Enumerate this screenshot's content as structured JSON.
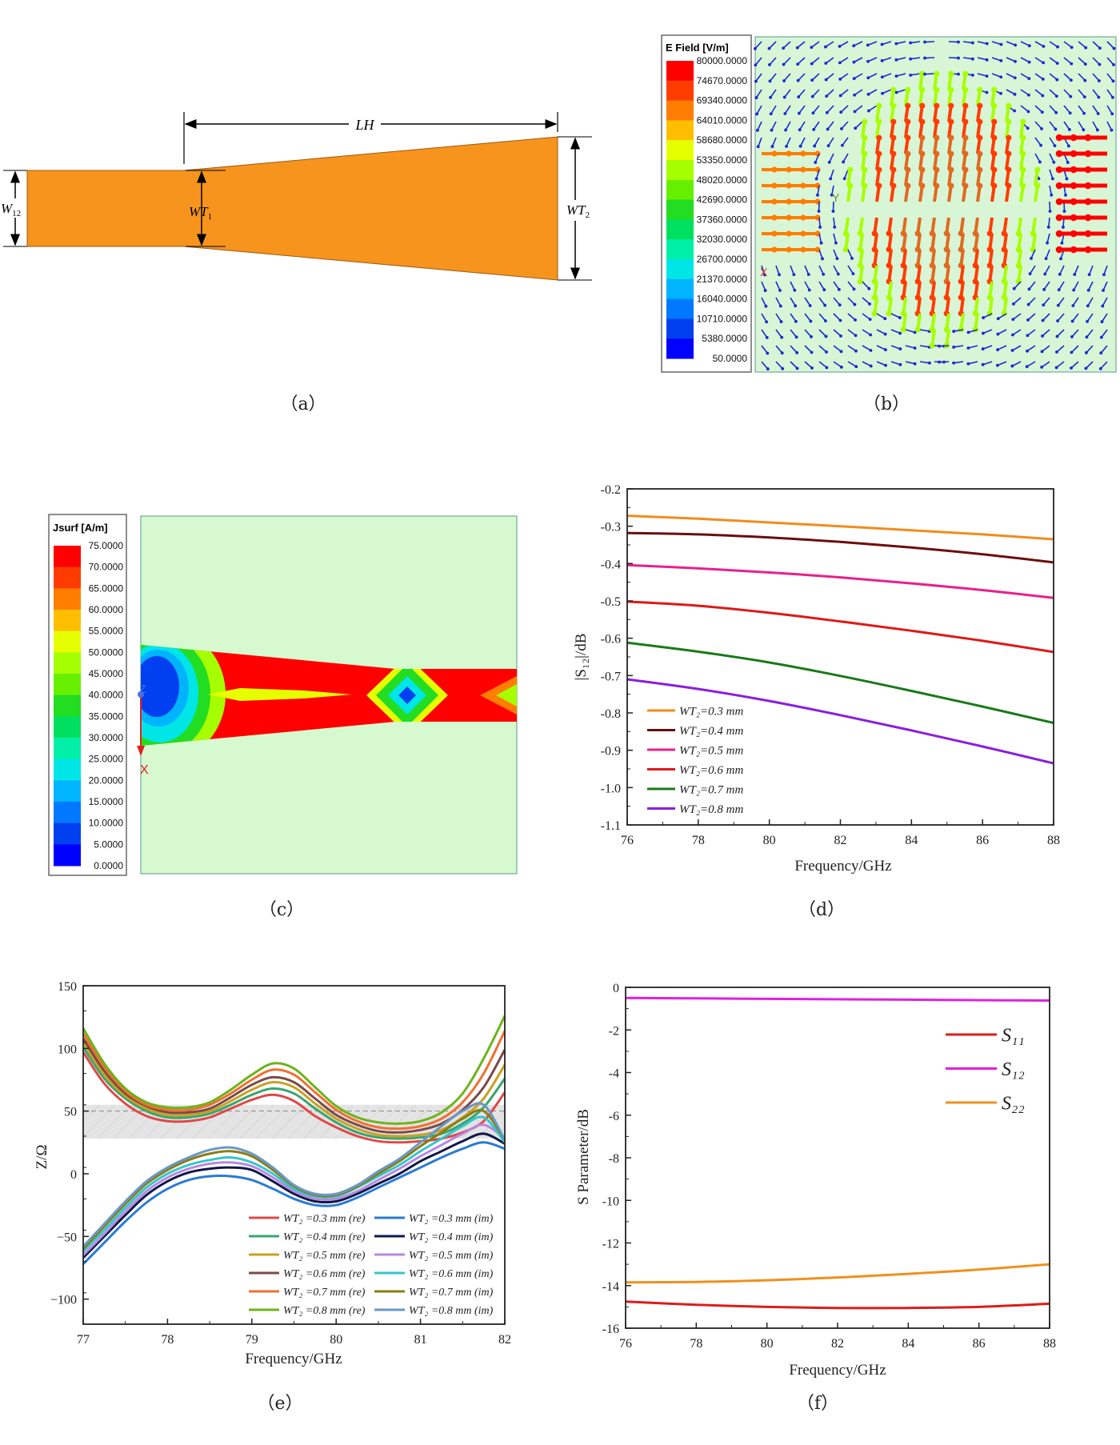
{
  "panel_a": {
    "caption": "（a）",
    "label_LH": "LH",
    "label_W12": "W",
    "label_W12_sub": "12",
    "label_WT1": "WT",
    "label_WT1_sub": "1",
    "label_WT2": "WT",
    "label_WT2_sub": "2",
    "fill_color": "#f7941d"
  },
  "panel_b": {
    "caption": "（b）",
    "colorbar_title": "E Field [V/m]",
    "colorbar_ticks": [
      "80000.0000",
      "74670.0000",
      "69340.0000",
      "64010.0000",
      "58680.0000",
      "53350.0000",
      "48020.0000",
      "42690.0000",
      "37360.0000",
      "32030.0000",
      "26700.0000",
      "21370.0000",
      "16040.0000",
      "10710.0000",
      "5380.0000",
      "50.0000"
    ],
    "axis_y": "Y",
    "axis_x": "X"
  },
  "panel_c": {
    "caption": "（c）",
    "colorbar_title": "Jsurf [A/m]",
    "colorbar_ticks": [
      "75.0000",
      "70.0000",
      "65.0000",
      "60.0000",
      "55.0000",
      "50.0000",
      "45.0000",
      "40.0000",
      "35.0000",
      "30.0000",
      "25.0000",
      "20.0000",
      "15.0000",
      "10.0000",
      "5.0000",
      "0.0000"
    ],
    "axis_z": "Z",
    "axis_x": "X"
  },
  "colormap": [
    "#ff0000",
    "#ff3c00",
    "#ff7d00",
    "#ffbe00",
    "#e6ff00",
    "#a6ff00",
    "#66f000",
    "#22dd22",
    "#00e060",
    "#00f0a8",
    "#00e6e6",
    "#00b4ff",
    "#0078ff",
    "#0040f0",
    "#0000ff"
  ],
  "chart_data": [
    {
      "id": "d",
      "caption": "（d）",
      "type": "line",
      "xlabel": "Frequency/GHz",
      "ylabel": "|S₁₂|/dB",
      "xlim": [
        76,
        88
      ],
      "ylim": [
        -1.1,
        -0.2
      ],
      "xticks": [
        "76",
        "78",
        "80",
        "82",
        "84",
        "86",
        "88"
      ],
      "yticks": [
        "-0.2",
        "-0.3",
        "-0.4",
        "-0.5",
        "-0.6",
        "-0.7",
        "-0.8",
        "-0.9",
        "-1.0",
        "-1.1"
      ],
      "grid": false,
      "legend": "bottom-left",
      "x": [
        76,
        78,
        80,
        82,
        84,
        86,
        88
      ],
      "series": [
        {
          "name": "WT₂=0.3 mm",
          "color": "#f28c1c",
          "values": [
            -0.272,
            -0.28,
            -0.29,
            -0.3,
            -0.311,
            -0.322,
            -0.335
          ]
        },
        {
          "name": "WT₂=0.4 mm",
          "color": "#6b0e0e",
          "values": [
            -0.318,
            -0.322,
            -0.33,
            -0.342,
            -0.357,
            -0.375,
            -0.397
          ]
        },
        {
          "name": "WT₂=0.5 mm",
          "color": "#e8208c",
          "values": [
            -0.404,
            -0.413,
            -0.424,
            -0.437,
            -0.453,
            -0.471,
            -0.492
          ]
        },
        {
          "name": "WT₂=0.6 mm",
          "color": "#e01818",
          "values": [
            -0.502,
            -0.513,
            -0.532,
            -0.555,
            -0.58,
            -0.607,
            -0.637
          ]
        },
        {
          "name": "WT₂=0.7 mm",
          "color": "#1a7a1a",
          "values": [
            -0.612,
            -0.636,
            -0.665,
            -0.701,
            -0.741,
            -0.783,
            -0.827
          ]
        },
        {
          "name": "WT₂=0.8 mm",
          "color": "#8a1ee0",
          "values": [
            -0.71,
            -0.736,
            -0.768,
            -0.806,
            -0.847,
            -0.89,
            -0.935
          ]
        }
      ]
    },
    {
      "id": "e",
      "caption": "（e）",
      "type": "line",
      "xlabel": "Frequency/GHz",
      "ylabel": "Z/Ω",
      "xlim": [
        77,
        82
      ],
      "ylim": [
        -120,
        150
      ],
      "xticks": [
        "77",
        "78",
        "79",
        "80",
        "81",
        "82"
      ],
      "yticks": [
        "150",
        "100",
        "50",
        "0",
        "−50",
        "−100"
      ],
      "ytick_values": [
        150,
        100,
        50,
        0,
        -50,
        -100
      ],
      "grid": false,
      "legend": "bottom-right",
      "shaded_band": [
        28,
        55
      ],
      "reference_line": 50,
      "x": [
        77,
        77.25,
        77.5,
        77.75,
        78,
        78.25,
        78.5,
        78.75,
        79,
        79.25,
        79.5,
        79.75,
        80,
        80.25,
        80.5,
        80.75,
        81,
        81.25,
        81.5,
        81.75,
        82
      ],
      "series": [
        {
          "name": "WT₂ =0.3 mm (re)",
          "color": "#e04848",
          "values": [
            97,
            72,
            56,
            46,
            42,
            42,
            45,
            52,
            59,
            63,
            58,
            46,
            37,
            30,
            26,
            25,
            26,
            28,
            33,
            42,
            65
          ]
        },
        {
          "name": "WT₂ =0.4 mm (re)",
          "color": "#3aa56e",
          "values": [
            101,
            76,
            60,
            50,
            45,
            45,
            48,
            55,
            63,
            68,
            64,
            52,
            41,
            33,
            29,
            28,
            29,
            32,
            40,
            53,
            76
          ]
        },
        {
          "name": "WT₂ =0.5 mm (re)",
          "color": "#c9a024",
          "values": [
            105,
            79,
            62,
            52,
            47,
            47,
            50,
            58,
            67,
            73,
            69,
            56,
            44,
            36,
            31,
            30,
            31,
            35,
            45,
            60,
            87
          ]
        },
        {
          "name": "WT₂ =0.6 mm (re)",
          "color": "#7a4a4a",
          "values": [
            108,
            82,
            64,
            54,
            49,
            49,
            52,
            61,
            71,
            77,
            73,
            60,
            47,
            39,
            34,
            33,
            35,
            40,
            51,
            69,
            99
          ]
        },
        {
          "name": "WT₂ =0.7 mm (re)",
          "color": "#f07030",
          "values": [
            112,
            85,
            66,
            55,
            51,
            51,
            55,
            64,
            75,
            83,
            79,
            65,
            51,
            42,
            37,
            36,
            38,
            44,
            57,
            80,
            114
          ]
        },
        {
          "name": "WT₂ =0.8 mm (re)",
          "color": "#6cb41c",
          "values": [
            116,
            88,
            68,
            57,
            53,
            53,
            57,
            67,
            79,
            88,
            84,
            69,
            54,
            45,
            41,
            40,
            42,
            49,
            64,
            92,
            126
          ]
        },
        {
          "name": "WT₂ =0.3 mm (im)",
          "color": "#2a7bd2",
          "values": [
            -72,
            -55,
            -38,
            -23,
            -12,
            -5,
            -2,
            -2,
            -5,
            -12,
            -20,
            -25,
            -25,
            -19,
            -11,
            -3,
            5,
            13,
            20,
            25,
            20
          ]
        },
        {
          "name": "WT₂ =0.4 mm (im)",
          "color": "#101848",
          "values": [
            -67,
            -50,
            -33,
            -17,
            -6,
            1,
            4,
            5,
            3,
            -6,
            -16,
            -22,
            -22,
            -16,
            -8,
            0,
            10,
            18,
            26,
            32,
            24
          ]
        },
        {
          "name": "WT₂ =0.5 mm (im)",
          "color": "#b888e0",
          "values": [
            -65,
            -48,
            -30,
            -14,
            -3,
            4,
            8,
            9,
            6,
            -3,
            -14,
            -20,
            -20,
            -14,
            -5,
            4,
            14,
            23,
            32,
            39,
            28
          ]
        },
        {
          "name": "WT₂ =0.6 mm (im)",
          "color": "#33c6cc",
          "values": [
            -62,
            -45,
            -27,
            -11,
            0,
            7,
            11,
            13,
            9,
            0,
            -12,
            -18,
            -18,
            -11,
            -2,
            7,
            18,
            28,
            38,
            45,
            25
          ]
        },
        {
          "name": "WT₂ =0.7 mm (im)",
          "color": "#8a7e12",
          "values": [
            -60,
            -42,
            -24,
            -8,
            3,
            11,
            16,
            18,
            14,
            3,
            -10,
            -17,
            -17,
            -10,
            0,
            10,
            22,
            33,
            44,
            50,
            27
          ]
        },
        {
          "name": "WT₂ =0.8 mm (im)",
          "color": "#6a98c8",
          "values": [
            -58,
            -40,
            -22,
            -6,
            5,
            13,
            19,
            21,
            16,
            5,
            -9,
            -16,
            -16,
            -9,
            2,
            12,
            25,
            38,
            50,
            55,
            27
          ]
        }
      ]
    },
    {
      "id": "f",
      "caption": "（f）",
      "type": "line",
      "xlabel": "Frequency/GHz",
      "ylabel": "S Parameter/dB",
      "xlim": [
        76,
        88
      ],
      "ylim": [
        -16,
        0
      ],
      "xticks": [
        "76",
        "78",
        "80",
        "82",
        "84",
        "86",
        "88"
      ],
      "yticks": [
        "0",
        "-2",
        "-4",
        "-6",
        "-8",
        "-10",
        "-12",
        "-14",
        "-16"
      ],
      "grid": false,
      "legend": "top-right",
      "x": [
        76,
        78,
        80,
        82,
        84,
        86,
        88
      ],
      "series": [
        {
          "name": "S₁₁",
          "color": "#dd1c1c",
          "values": [
            -14.75,
            -14.9,
            -15.0,
            -15.05,
            -15.05,
            -15.0,
            -14.85
          ]
        },
        {
          "name": "S₁₂",
          "color": "#e020e0",
          "values": [
            -0.5,
            -0.52,
            -0.54,
            -0.56,
            -0.58,
            -0.6,
            -0.62
          ]
        },
        {
          "name": "S₂₂",
          "color": "#f0901c",
          "values": [
            -13.85,
            -13.83,
            -13.75,
            -13.62,
            -13.45,
            -13.25,
            -13.0
          ]
        }
      ]
    }
  ]
}
